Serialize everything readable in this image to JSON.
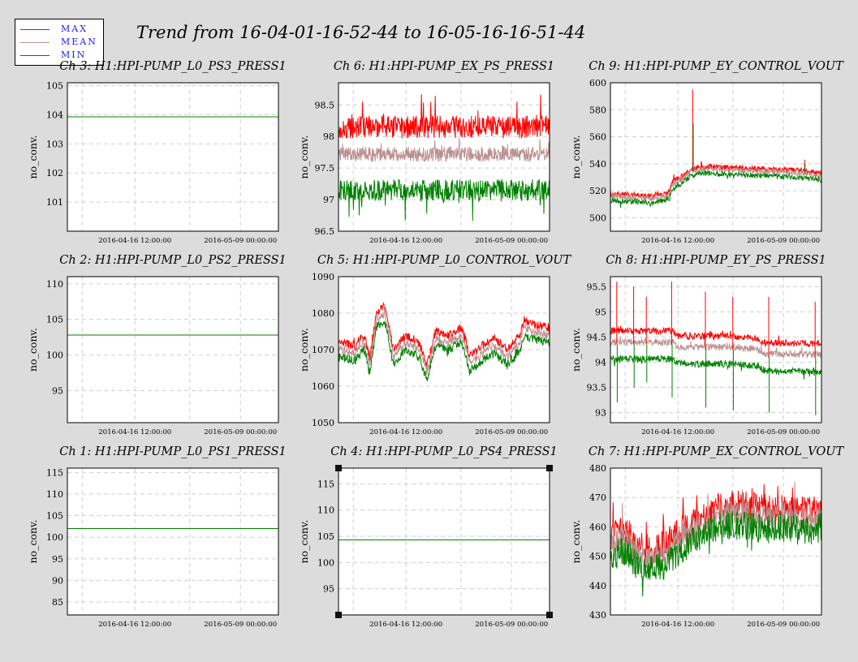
{
  "title": "Trend from 16-04-01-16-52-44 to 16-05-16-16-51-44",
  "legend": [
    {
      "label": "MAX",
      "color": "#ff0000"
    },
    {
      "label": "MEAN",
      "color": "#bc8f8f"
    },
    {
      "label": "MIN",
      "color": "#008000"
    }
  ],
  "colors": {
    "max": "#ff0000",
    "mean": "#bc8f8f",
    "min": "#008000"
  },
  "chart_data": [
    {
      "type": "line",
      "title": "Ch 3: H1:HPI-PUMP_L0_PS3_PRESS1",
      "ylabel": "no_conv.",
      "ylim": [
        100,
        105.1
      ],
      "yticks": [
        101,
        102,
        103,
        104,
        105
      ],
      "xticks": [
        "2016-04-16 12:00:00",
        "2016-05-09 00:00:00"
      ],
      "grid": true,
      "mode": "flat",
      "level": 103.93
    },
    {
      "type": "line",
      "title": "Ch 6: H1:HPI-PUMP_EX_PS_PRESS1",
      "ylabel": "no_conv.",
      "ylim": [
        96.5,
        98.85
      ],
      "yticks": [
        96.5,
        97,
        97.5,
        98,
        98.5
      ],
      "xticks": [
        "2016-04-16 12:00:00",
        "2016-05-09 00:00:00"
      ],
      "grid": true,
      "mode": "noise",
      "max": {
        "base": 98.15,
        "amp": 0.18,
        "spike": 0.45
      },
      "mean": {
        "base": 97.72,
        "amp": 0.12,
        "spike": 0.15
      },
      "min": {
        "base": 97.15,
        "amp": 0.17,
        "spike": -0.45
      }
    },
    {
      "type": "line",
      "title": "Ch 9: H1:HPI-PUMP_EY_CONTROL_VOUT",
      "ylabel": "no_conv.",
      "ylim": [
        490,
        600
      ],
      "yticks": [
        500,
        520,
        540,
        560,
        580,
        600
      ],
      "xticks": [
        "2016-04-16 12:00:00",
        "2016-05-09 00:00:00"
      ],
      "grid": true,
      "mode": "trend",
      "x": [
        0,
        0.2,
        0.28,
        0.29,
        0.36,
        0.38,
        0.44,
        0.6,
        0.75,
        0.88,
        1
      ],
      "y": [
        516,
        514,
        517,
        524,
        531,
        534,
        536,
        535,
        534,
        533,
        531
      ],
      "offsets": [
        2,
        0,
        -3
      ],
      "amp": 2,
      "spikes": [
        {
          "t": 0.39,
          "max": 595,
          "min": 570
        },
        {
          "t": 0.92,
          "max": 543,
          "min": 540
        }
      ]
    },
    {
      "type": "line",
      "title": "Ch 2: H1:HPI-PUMP_L0_PS2_PRESS1",
      "ylabel": "no_conv.",
      "ylim": [
        90.5,
        111
      ],
      "yticks": [
        95,
        100,
        105,
        110
      ],
      "xticks": [
        "2016-04-16 12:00:00",
        "2016-05-09 00:00:00"
      ],
      "grid": true,
      "mode": "flat",
      "level": 102.8
    },
    {
      "type": "line",
      "title": "Ch 5: H1:HPI-PUMP_L0_CONTROL_VOUT",
      "ylabel": "no_conv.",
      "ylim": [
        1050,
        1090
      ],
      "yticks": [
        1050,
        1060,
        1070,
        1080,
        1090
      ],
      "xticks": [
        "2016-04-16 12:00:00",
        "2016-05-09 00:00:00"
      ],
      "grid": true,
      "mode": "trend",
      "x": [
        0,
        0.08,
        0.12,
        0.15,
        0.18,
        0.22,
        0.26,
        0.32,
        0.38,
        0.42,
        0.46,
        0.52,
        0.58,
        0.6,
        0.62,
        0.66,
        0.7,
        0.74,
        0.8,
        0.86,
        0.88,
        0.92,
        1
      ],
      "y": [
        1070,
        1069,
        1072,
        1066,
        1078,
        1080,
        1068,
        1072,
        1070,
        1064,
        1073,
        1072,
        1074,
        1071,
        1066,
        1068,
        1070,
        1071,
        1068,
        1072,
        1076,
        1075,
        1074
      ],
      "offsets": [
        2,
        0,
        -2
      ],
      "amp": 1.2,
      "spikes": []
    },
    {
      "type": "line",
      "title": "Ch 8: H1:HPI-PUMP_EY_PS_PRESS1",
      "ylabel": "no_conv.",
      "ylim": [
        92.8,
        95.7
      ],
      "yticks": [
        93,
        93.5,
        94,
        94.5,
        95,
        95.5
      ],
      "xticks": [
        "2016-04-16 12:00:00",
        "2016-05-09 00:00:00"
      ],
      "grid": true,
      "mode": "trend",
      "x": [
        0,
        0.3,
        0.32,
        0.6,
        0.7,
        0.72,
        1
      ],
      "y": [
        94.35,
        94.35,
        94.25,
        94.25,
        94.2,
        94.12,
        94.1
      ],
      "offsets": [
        0.27,
        0.05,
        -0.28
      ],
      "amp": 0.07,
      "spikes": [
        {
          "t": 0.03,
          "max": 95.6,
          "min": 93.2
        },
        {
          "t": 0.11,
          "max": 95.5,
          "min": 93.5
        },
        {
          "t": 0.17,
          "max": 95.3,
          "min": 93.6
        },
        {
          "t": 0.29,
          "max": 95.6,
          "min": 93.3
        },
        {
          "t": 0.45,
          "max": 95.4,
          "min": 93.1
        },
        {
          "t": 0.58,
          "max": 95.3,
          "min": 93.05
        },
        {
          "t": 0.75,
          "max": 95.3,
          "min": 93.0
        },
        {
          "t": 0.97,
          "max": 95.2,
          "min": 92.95
        }
      ]
    },
    {
      "type": "line",
      "title": "Ch 1: H1:HPI-PUMP_L0_PS1_PRESS1",
      "ylabel": "no_conv.",
      "ylim": [
        82,
        116
      ],
      "yticks": [
        85,
        90,
        95,
        100,
        105,
        110,
        115
      ],
      "xticks": [
        "2016-04-16 12:00:00",
        "2016-05-09 00:00:00"
      ],
      "grid": true,
      "mode": "flat",
      "level": 102
    },
    {
      "type": "line",
      "title": "Ch 4: H1:HPI-PUMP_L0_PS4_PRESS1",
      "ylabel": "no_conv.",
      "ylim": [
        90,
        118
      ],
      "yticks": [
        95,
        100,
        105,
        110,
        115
      ],
      "xticks": [
        "2016-04-16 12:00:00",
        "2016-05-09 00:00:00"
      ],
      "grid": true,
      "mode": "flat",
      "level": 104.3
    },
    {
      "type": "line",
      "title": "Ch 7: H1:HPI-PUMP_EX_CONTROL_VOUT",
      "ylabel": "no_conv.",
      "ylim": [
        430,
        480
      ],
      "yticks": [
        430,
        440,
        450,
        460,
        470,
        480
      ],
      "xticks": [
        "2016-04-16 12:00:00",
        "2016-05-09 00:00:00"
      ],
      "grid": true,
      "mode": "trend",
      "x": [
        0,
        0.08,
        0.12,
        0.2,
        0.26,
        0.35,
        0.45,
        0.55,
        0.65,
        0.75,
        0.85,
        0.95,
        1
      ],
      "y": [
        453,
        455,
        450,
        448,
        450,
        456,
        461,
        464,
        463,
        462,
        463,
        461,
        463
      ],
      "offsets": [
        4,
        1,
        -3
      ],
      "amp": 5,
      "spikes": []
    }
  ]
}
